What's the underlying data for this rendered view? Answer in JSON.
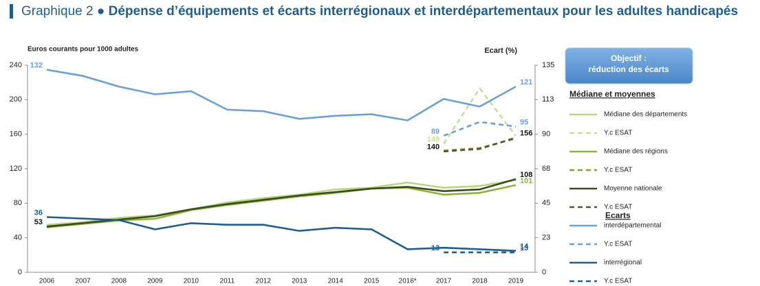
{
  "chart_data": {
    "type": "line",
    "label": "Graphique 2",
    "title": "Dépense d’équipements et écarts interrégionaux et interdépartementaux pour les adultes handicapés",
    "ylabel": "Euros courants pour 1000 adultes",
    "y2label": "Ecart (%)",
    "annotation": [
      "Objectif :",
      "réduction des écarts"
    ],
    "legend_headers": [
      "Médiane et moyennes",
      "Ecarts"
    ],
    "categories": [
      "2006",
      "2007",
      "2008",
      "2009",
      "2010",
      "2011",
      "2012",
      "2013",
      "2014",
      "2015",
      "2016*",
      "2017",
      "2018",
      "2019"
    ],
    "ylim": [
      0,
      240
    ],
    "yticks": [
      0,
      40,
      80,
      120,
      160,
      200,
      240
    ],
    "y2lim": [
      0,
      135
    ],
    "y2ticks": [
      0,
      {
        "value": 22.5,
        "label": "23"
      },
      45,
      {
        "value": 67.5,
        "label": "68"
      },
      90,
      {
        "value": 112.5,
        "label": "113"
      },
      135
    ],
    "series": [
      {
        "name": "Médiane des départements",
        "color": "#b8d87c",
        "dash": false,
        "values": [
          55,
          58,
          63,
          66,
          73,
          81,
          86,
          90,
          96,
          98,
          104,
          98,
          100,
          107
        ]
      },
      {
        "name": "Y.c ESAT",
        "color": "#c5df96",
        "dash": true,
        "values": [
          null,
          null,
          null,
          null,
          null,
          null,
          null,
          null,
          null,
          null,
          null,
          149,
          213,
          158
        ],
        "value_labels": [
          null,
          null,
          null,
          null,
          null,
          null,
          null,
          null,
          null,
          null,
          null,
          "149",
          null,
          null
        ]
      },
      {
        "name": "Médiane des régions",
        "color": "#8db33a",
        "dash": false,
        "values": [
          52,
          56,
          60,
          62,
          72,
          78,
          83,
          88,
          92,
          97,
          98,
          90,
          92,
          101
        ],
        "value_labels": [
          null,
          null,
          null,
          null,
          null,
          null,
          null,
          null,
          null,
          null,
          null,
          null,
          null,
          "101"
        ]
      },
      {
        "name": "Y.c ESAT",
        "color": "#7fa52f",
        "dash": true,
        "values": [
          null,
          null,
          null,
          null,
          null,
          null,
          null,
          null,
          null,
          null,
          null,
          141,
          144,
          155
        ]
      },
      {
        "name": "Moyenne nationale",
        "color": "#3d4a1e",
        "dash": false,
        "values": [
          53,
          57,
          61,
          65,
          73,
          79,
          84,
          89,
          93,
          97,
          99,
          94,
          96,
          108
        ],
        "value_labels": [
          "53",
          null,
          null,
          null,
          null,
          null,
          null,
          null,
          null,
          null,
          null,
          null,
          null,
          "108"
        ]
      },
      {
        "name": "Y.c ESAT",
        "color": "#4d5a24",
        "dash": true,
        "values": [
          null,
          null,
          null,
          null,
          null,
          null,
          null,
          null,
          null,
          null,
          null,
          140,
          143,
          156
        ],
        "value_labels": [
          null,
          null,
          null,
          null,
          null,
          null,
          null,
          null,
          null,
          null,
          null,
          "140",
          null,
          "156"
        ]
      },
      {
        "name": "interdépartemental",
        "color": "#6aa0d8",
        "dash": false,
        "axis": "y2",
        "values": [
          132,
          128,
          121,
          116,
          118,
          106,
          105,
          100,
          102,
          103,
          99,
          113,
          108,
          121
        ],
        "value_labels": [
          "132",
          null,
          null,
          null,
          null,
          null,
          null,
          null,
          null,
          null,
          null,
          null,
          null,
          "121"
        ]
      },
      {
        "name": "Y.c ESAT",
        "color": "#6aa0d8",
        "dash": true,
        "axis": "y2",
        "values": [
          null,
          null,
          null,
          null,
          null,
          null,
          null,
          null,
          null,
          null,
          null,
          89,
          98,
          95
        ],
        "value_labels": [
          null,
          null,
          null,
          null,
          null,
          null,
          null,
          null,
          null,
          null,
          null,
          "89",
          null,
          "95"
        ]
      },
      {
        "name": "interrégional",
        "color": "#1f5e93",
        "dash": false,
        "axis": "y2",
        "values": [
          36,
          35,
          34,
          28,
          32,
          31,
          31,
          27,
          29,
          28,
          15,
          16,
          15,
          14
        ],
        "value_labels": [
          "36",
          null,
          null,
          null,
          null,
          null,
          null,
          null,
          null,
          null,
          null,
          null,
          null,
          "14"
        ]
      },
      {
        "name": "Y.c ESAT",
        "color": "#1f5e93",
        "dash": true,
        "axis": "y2",
        "values": [
          null,
          null,
          null,
          null,
          null,
          null,
          null,
          null,
          null,
          null,
          null,
          13,
          13,
          13
        ],
        "value_labels": [
          null,
          null,
          null,
          null,
          null,
          null,
          null,
          null,
          null,
          null,
          null,
          "13",
          null,
          "13"
        ]
      }
    ]
  }
}
